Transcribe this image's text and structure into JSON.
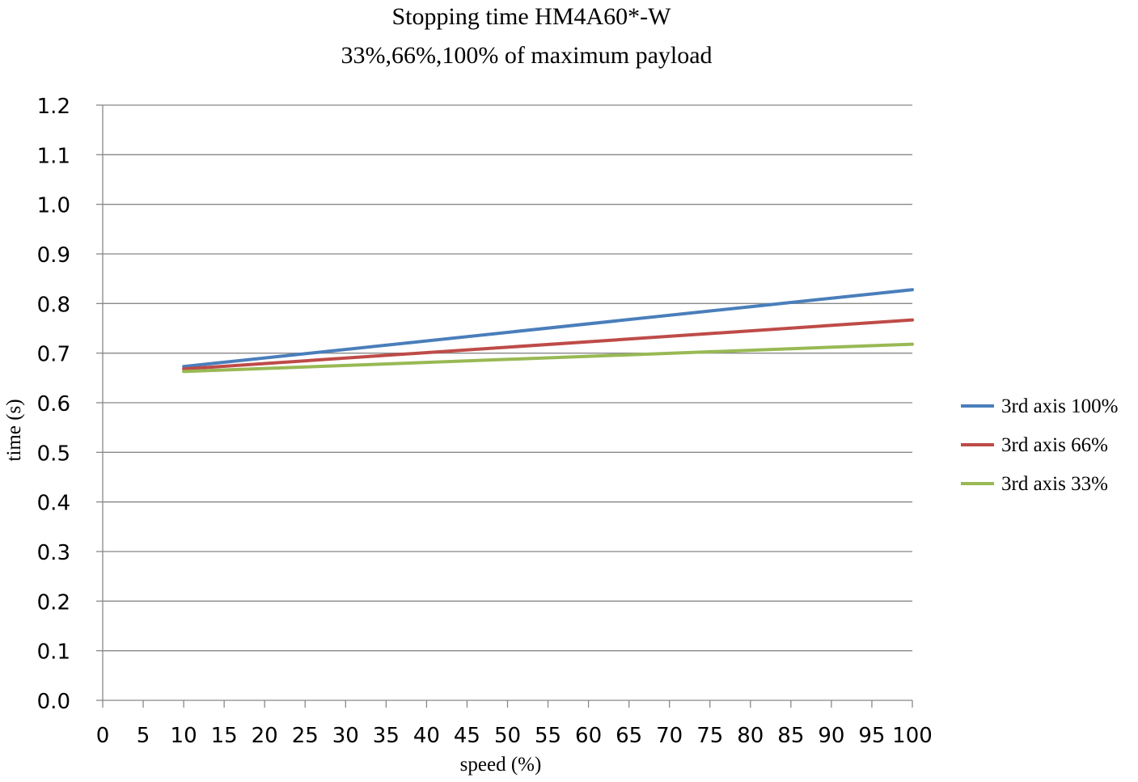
{
  "chart_data": {
    "type": "line",
    "title": "Stopping time HM4A60*-W",
    "subtitle": "33%,66%,100% of maximum payload",
    "xlabel": "speed (%)",
    "ylabel": "time (s)",
    "xlim": [
      0,
      100
    ],
    "ylim": [
      0.0,
      1.2
    ],
    "x_ticks": [
      "0",
      "5",
      "10",
      "15",
      "20",
      "25",
      "30",
      "35",
      "40",
      "45",
      "50",
      "55",
      "60",
      "65",
      "70",
      "75",
      "80",
      "85",
      "90",
      "95",
      "100"
    ],
    "y_ticks": [
      "0.0",
      "0.1",
      "0.2",
      "0.3",
      "0.4",
      "0.5",
      "0.6",
      "0.7",
      "0.8",
      "0.9",
      "1.0",
      "1.1",
      "1.2"
    ],
    "grid": "horizontal",
    "legend_position": "right",
    "series": [
      {
        "name": "3rd axis 100%",
        "color": "#4a7ebb",
        "x": [
          10,
          100
        ],
        "y": [
          0.673,
          0.828
        ]
      },
      {
        "name": "3rd axis 66%",
        "color": "#be4b48",
        "x": [
          10,
          100
        ],
        "y": [
          0.668,
          0.767
        ]
      },
      {
        "name": "3rd axis 33%",
        "color": "#98b954",
        "x": [
          10,
          100
        ],
        "y": [
          0.663,
          0.718
        ]
      }
    ]
  }
}
